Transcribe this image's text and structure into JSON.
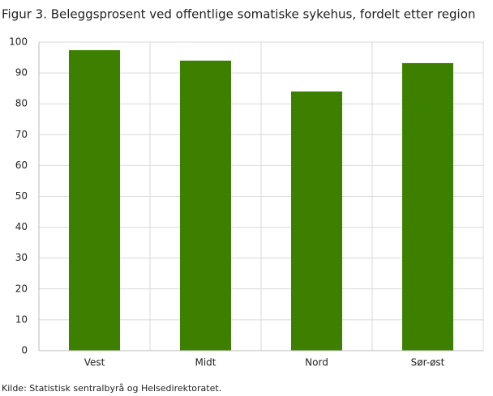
{
  "chart_data": {
    "type": "bar",
    "title": "Figur 3. Beleggsprosent ved offentlige somatiske sykehus, fordelt etter region",
    "source": "Kilde: Statistisk sentralbyrå og Helsedirektoratet.",
    "categories": [
      "Vest",
      "Midt",
      "Nord",
      "Sør-øst"
    ],
    "values": [
      97.4,
      94.0,
      84.0,
      93.2
    ],
    "color": "#3d8000",
    "ylim": [
      0,
      100
    ],
    "yticks": [
      0,
      10,
      20,
      30,
      40,
      50,
      60,
      70,
      80,
      90,
      100
    ],
    "grid": true
  }
}
